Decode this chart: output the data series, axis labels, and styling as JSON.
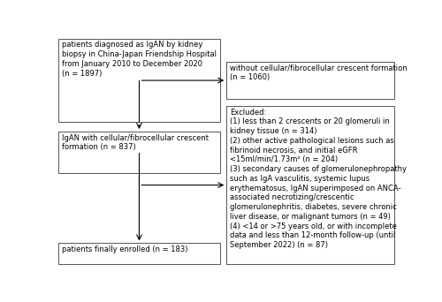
{
  "box1_text": "patients diagnosed as IgAN by kidney\nbiopsy in China-Japan Friendship Hospital\nfrom January 2010 to December 2020\n(n = 1897)",
  "box2_text": "IgAN with cellular/fibrocellular crescent\nformation (n = 837)",
  "box3_text": "patients finally enrolled (n = 183)",
  "box_right1_text": "without cellular/fibrocellular crescent formation\n(n = 1060)",
  "box_right2_text": "Excluded:\n(1) less than 2 crescents or 20 glomeruli in\nkidney tissue (n = 314)\n(2) other active pathological lesions such as\nfibrinoid necrosis, and initial eGFR\n<15ml/min/1.73m² (n = 204)\n(3) secondary causes of glomerulonephropathy\nsuch as IgA vasculitis, systemic lupus\nerythematosus, IgAN superimposed on ANCA-\nassociated necrotizing/crescentic\nglomerulonephritis, diabetes, severe chronic\nliver disease, or malignant tumors (n = 49)\n(4) <14 or >75 years old, or with incomplete\ndata and less than 12-month follow-up (until\nSeptember 2022) (n = 87)",
  "font_size": 6.0,
  "box_color": "white",
  "edge_color": "#555555",
  "text_color": "black",
  "bg_color": "white"
}
